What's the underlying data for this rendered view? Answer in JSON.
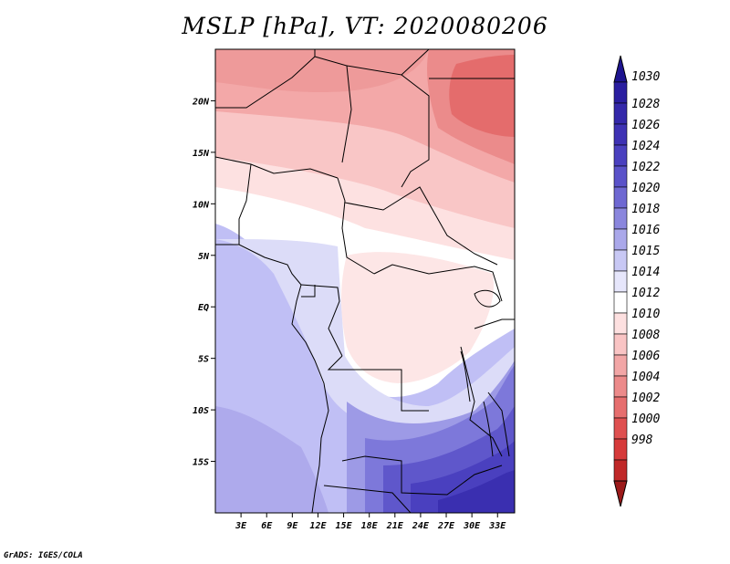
{
  "title": "MSLP [hPa], VT: 2020080206",
  "credit": "GrADS: IGES/COLA",
  "map": {
    "lon_range": [
      0,
      35
    ],
    "lat_range": [
      -20,
      25
    ],
    "lon_ticks": [
      {
        "value": 3,
        "label": "3E"
      },
      {
        "value": 6,
        "label": "6E"
      },
      {
        "value": 9,
        "label": "9E"
      },
      {
        "value": 12,
        "label": "12E"
      },
      {
        "value": 15,
        "label": "15E"
      },
      {
        "value": 18,
        "label": "18E"
      },
      {
        "value": 21,
        "label": "21E"
      },
      {
        "value": 24,
        "label": "24E"
      },
      {
        "value": 27,
        "label": "27E"
      },
      {
        "value": 30,
        "label": "30E"
      },
      {
        "value": 33,
        "label": "33E"
      }
    ],
    "lat_ticks": [
      {
        "value": 20,
        "label": "20N"
      },
      {
        "value": 15,
        "label": "15N"
      },
      {
        "value": 10,
        "label": "10N"
      },
      {
        "value": 5,
        "label": "5N"
      },
      {
        "value": 0,
        "label": "EQ"
      },
      {
        "value": -5,
        "label": "5S"
      },
      {
        "value": -10,
        "label": "10S"
      },
      {
        "value": -15,
        "label": "15S"
      }
    ]
  },
  "colorbar": {
    "labels": [
      "1030",
      "1028",
      "1026",
      "1024",
      "1022",
      "1020",
      "1018",
      "1016",
      "1015",
      "1014",
      "1012",
      "1010",
      "1008",
      "1006",
      "1004",
      "1002",
      "1000",
      "998"
    ],
    "colors": [
      "#2a1ea0",
      "#3428aa",
      "#3e32b4",
      "#4a40bf",
      "#5a52c9",
      "#6e68d2",
      "#8a86dd",
      "#aaa8ea",
      "#c8c8f4",
      "#e6e6fb",
      "#ffffff",
      "#fde0e0",
      "#f9c4c4",
      "#f2a6a6",
      "#ec8a8a",
      "#e66e6e",
      "#df5050",
      "#d63a3a",
      "#c02828"
    ],
    "min_color": "#9c1a1a",
    "max_color": "#1e1490"
  }
}
